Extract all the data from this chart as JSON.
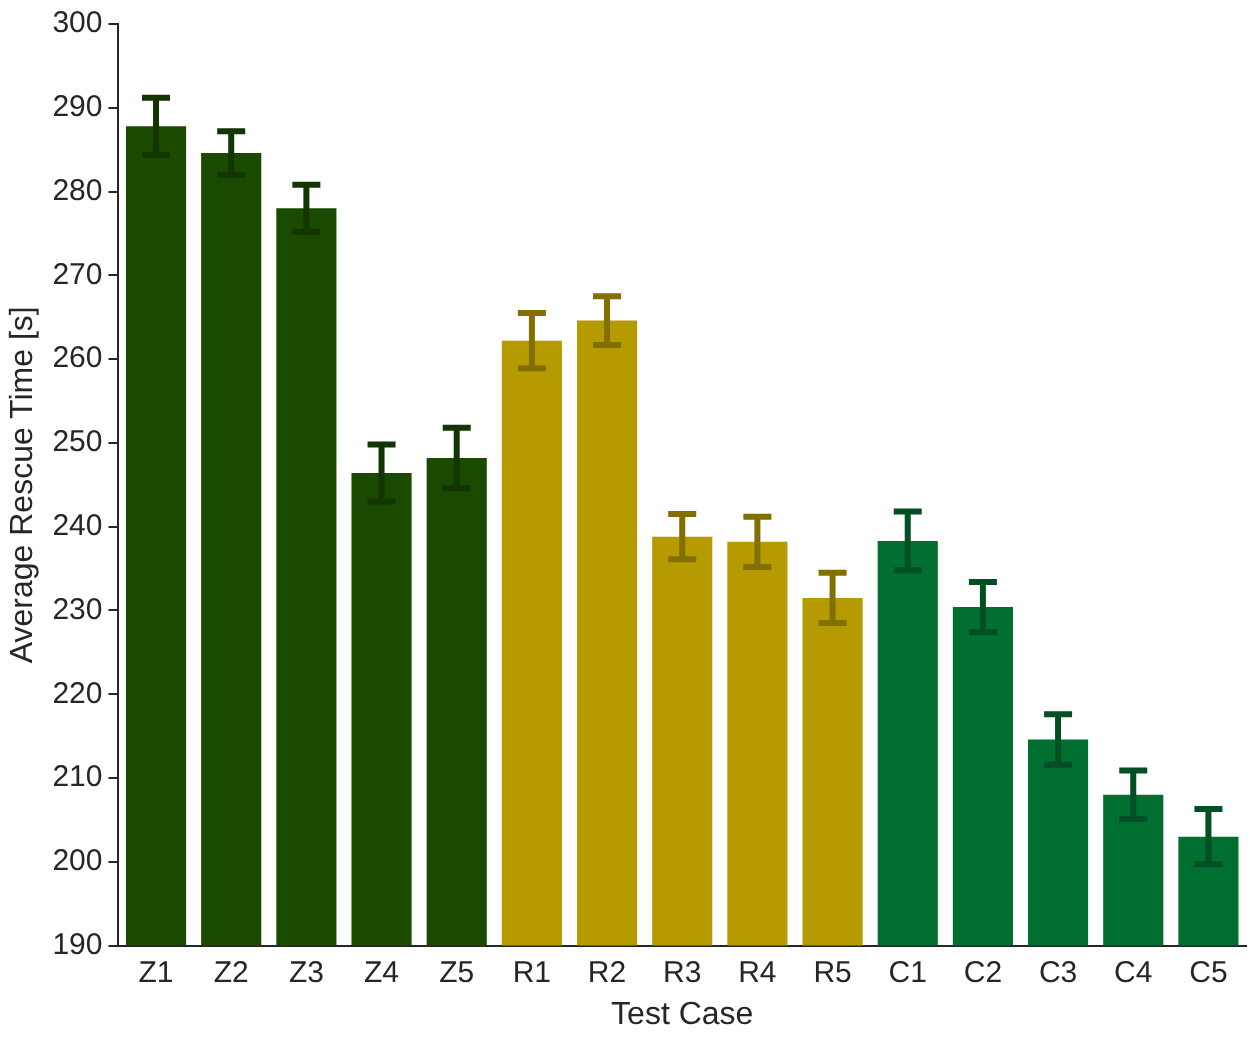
{
  "chart_data": {
    "type": "bar",
    "xlabel": "Test Case",
    "ylabel": "Average Rescue Time [s]",
    "categories": [
      "Z1",
      "Z2",
      "Z3",
      "Z4",
      "Z5",
      "R1",
      "R2",
      "R3",
      "R4",
      "R5",
      "C1",
      "C2",
      "C3",
      "C4",
      "C5"
    ],
    "values": [
      287.8,
      284.6,
      278.0,
      246.4,
      248.2,
      262.2,
      264.6,
      238.8,
      238.2,
      231.5,
      238.3,
      230.4,
      214.6,
      208.0,
      203.0
    ],
    "errors": [
      3.4,
      2.6,
      2.8,
      3.4,
      3.6,
      3.3,
      2.9,
      2.7,
      3.0,
      3.0,
      3.5,
      3.0,
      3.0,
      2.9,
      3.3
    ],
    "colors": [
      "#1a4a00",
      "#1a4a00",
      "#1a4a00",
      "#1a4a00",
      "#1a4a00",
      "#b59a00",
      "#b59a00",
      "#b59a00",
      "#b59a00",
      "#b59a00",
      "#006f30",
      "#006f30",
      "#006f30",
      "#006f30",
      "#006f30"
    ],
    "ylim": [
      190,
      300
    ],
    "yticks": [
      190,
      200,
      210,
      220,
      230,
      240,
      250,
      260,
      270,
      280,
      290,
      300
    ],
    "grid": false,
    "legend": false
  }
}
